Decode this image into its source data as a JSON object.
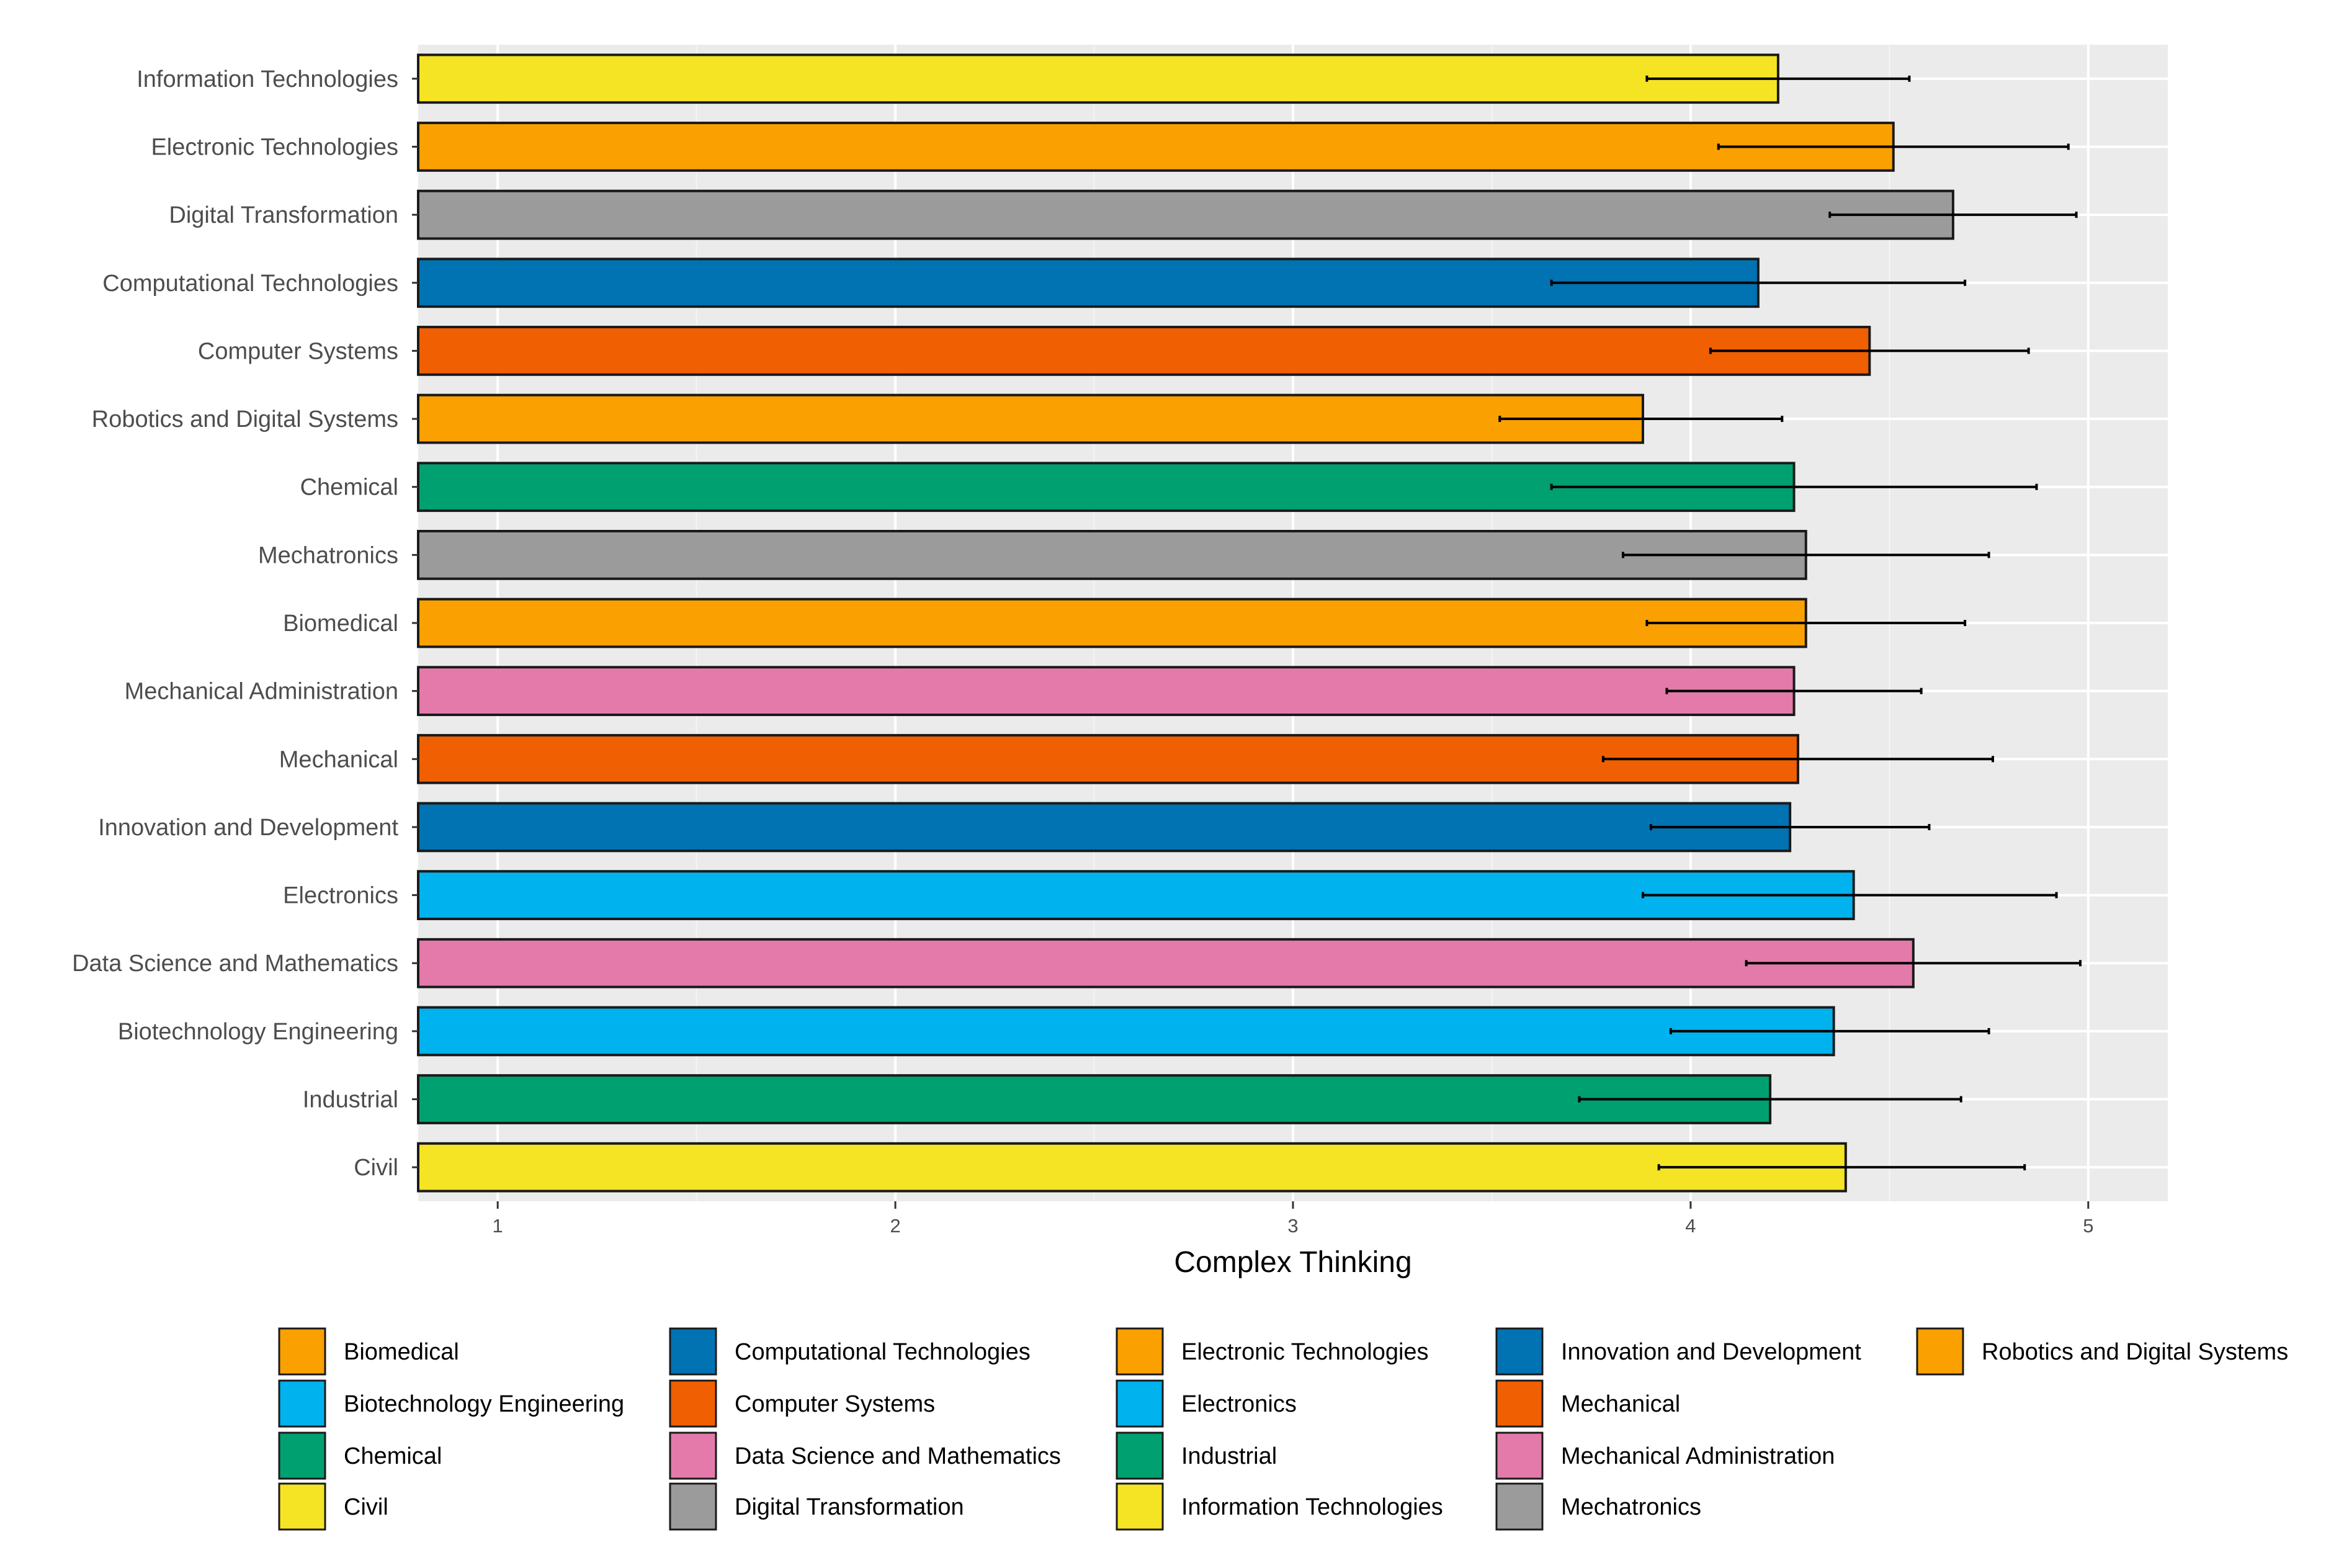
{
  "chart_data": {
    "type": "bar",
    "orientation": "horizontal",
    "title": "",
    "xlabel": "Complex Thinking",
    "ylabel": "",
    "xlim": [
      0.8,
      5.2
    ],
    "xticks": [
      1,
      2,
      3,
      4,
      5
    ],
    "xtick_labels": [
      "1",
      "2",
      "3",
      "4",
      "5"
    ],
    "grid": true,
    "legend_position": "bottom",
    "categories": [
      "Information Technologies",
      "Electronic Technologies",
      "Digital Transformation",
      "Computational Technologies",
      "Computer Systems",
      "Robotics and Digital Systems",
      "Chemical",
      "Mechatronics",
      "Biomedical",
      "Mechanical Administration",
      "Mechanical",
      "Innovation and Development",
      "Electronics",
      "Data Science and Mathematics",
      "Biotechnology Engineering",
      "Industrial",
      "Civil"
    ],
    "values": [
      4.22,
      4.51,
      4.66,
      4.17,
      4.45,
      3.88,
      4.26,
      4.29,
      4.29,
      4.26,
      4.27,
      4.25,
      4.41,
      4.56,
      4.36,
      4.2,
      4.39
    ],
    "error_low": [
      3.89,
      4.07,
      4.35,
      3.65,
      4.05,
      3.52,
      3.65,
      3.83,
      3.89,
      3.94,
      3.78,
      3.9,
      3.88,
      4.14,
      3.95,
      3.72,
      3.92
    ],
    "error_high": [
      4.55,
      4.95,
      4.97,
      4.69,
      4.85,
      4.23,
      4.87,
      4.75,
      4.69,
      4.58,
      4.76,
      4.6,
      4.92,
      4.98,
      4.75,
      4.68,
      4.84
    ],
    "colors": [
      "#F5E423",
      "#FAA000",
      "#9B9B9B",
      "#0173B2",
      "#F05F01",
      "#FAA000",
      "#00A070",
      "#9B9B9B",
      "#FAA000",
      "#E37AAA",
      "#F05F01",
      "#0173B2",
      "#00B2ED",
      "#E37AAA",
      "#00B2ED",
      "#00A070",
      "#F5E423"
    ],
    "legend": [
      {
        "label": "Biomedical",
        "color": "#FAA000"
      },
      {
        "label": "Biotechnology Engineering",
        "color": "#00B2ED"
      },
      {
        "label": "Chemical",
        "color": "#00A070"
      },
      {
        "label": "Civil",
        "color": "#F5E423"
      },
      {
        "label": "Computational Technologies",
        "color": "#0173B2"
      },
      {
        "label": "Computer Systems",
        "color": "#F05F01"
      },
      {
        "label": "Data Science and Mathematics",
        "color": "#E37AAA"
      },
      {
        "label": "Digital Transformation",
        "color": "#9B9B9B"
      },
      {
        "label": "Electronic Technologies",
        "color": "#FAA000"
      },
      {
        "label": "Electronics",
        "color": "#00B2ED"
      },
      {
        "label": "Industrial",
        "color": "#00A070"
      },
      {
        "label": "Information Technologies",
        "color": "#F5E423"
      },
      {
        "label": "Innovation and Development",
        "color": "#0173B2"
      },
      {
        "label": "Mechanical",
        "color": "#F05F01"
      },
      {
        "label": "Mechanical Administration",
        "color": "#E37AAA"
      },
      {
        "label": "Mechatronics",
        "color": "#9B9B9B"
      },
      {
        "label": "Robotics and Digital Systems",
        "color": "#FAA000"
      }
    ]
  }
}
